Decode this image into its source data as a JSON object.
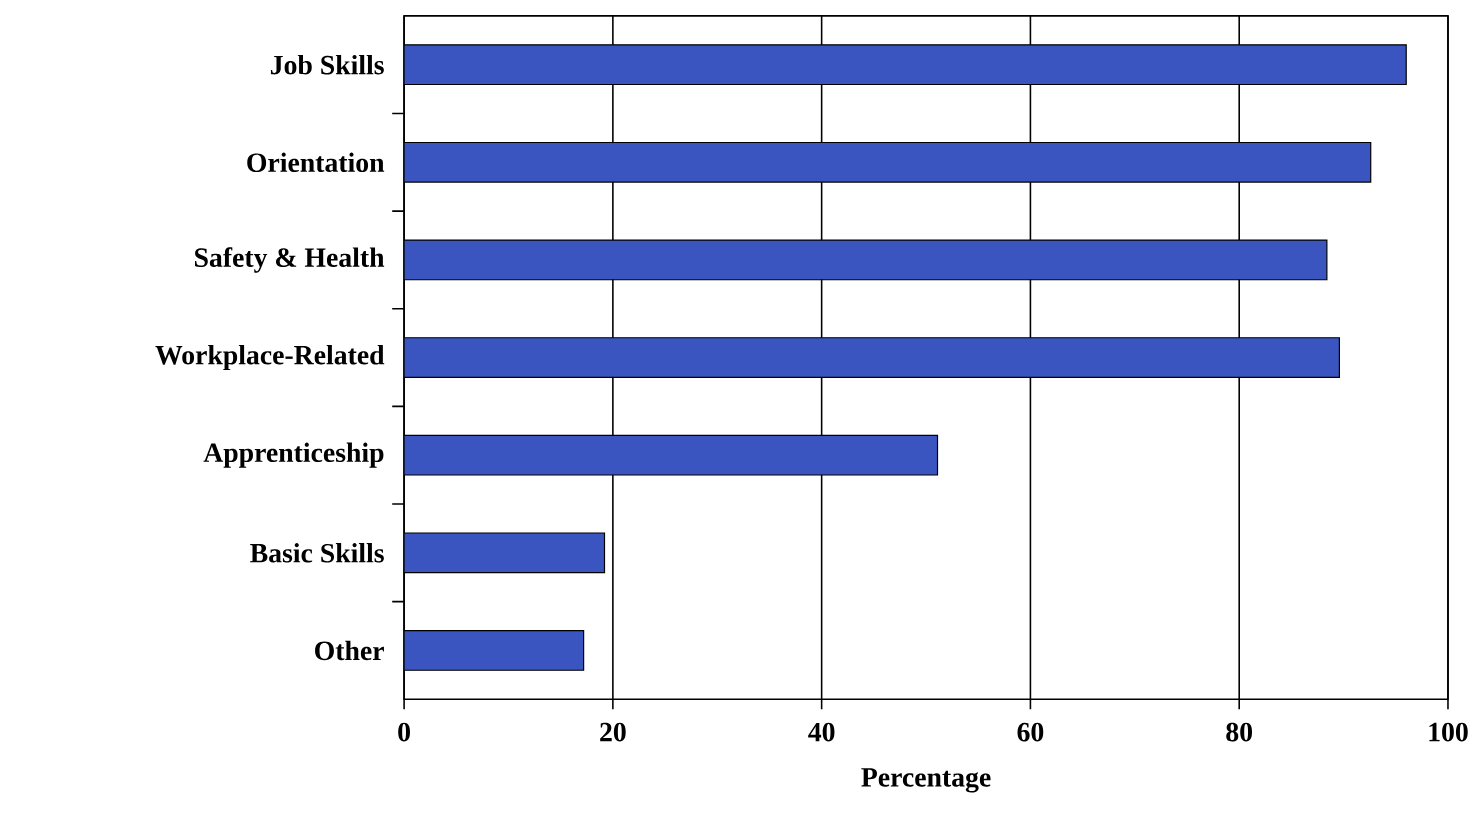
{
  "chart_data": {
    "type": "bar",
    "orientation": "horizontal",
    "xlabel": "Percentage",
    "categories": [
      "Job Skills",
      "Orientation",
      "Safety & Health",
      "Workplace-Related",
      "Apprenticeship",
      "Basic Skills",
      "Other"
    ],
    "values": [
      96.0,
      92.6,
      88.4,
      89.6,
      51.1,
      19.2,
      17.2
    ],
    "color": "#3a55c0",
    "xlim": [
      0,
      100
    ],
    "xticks": [
      0,
      20,
      40,
      60,
      80,
      100
    ],
    "grid": "x"
  }
}
